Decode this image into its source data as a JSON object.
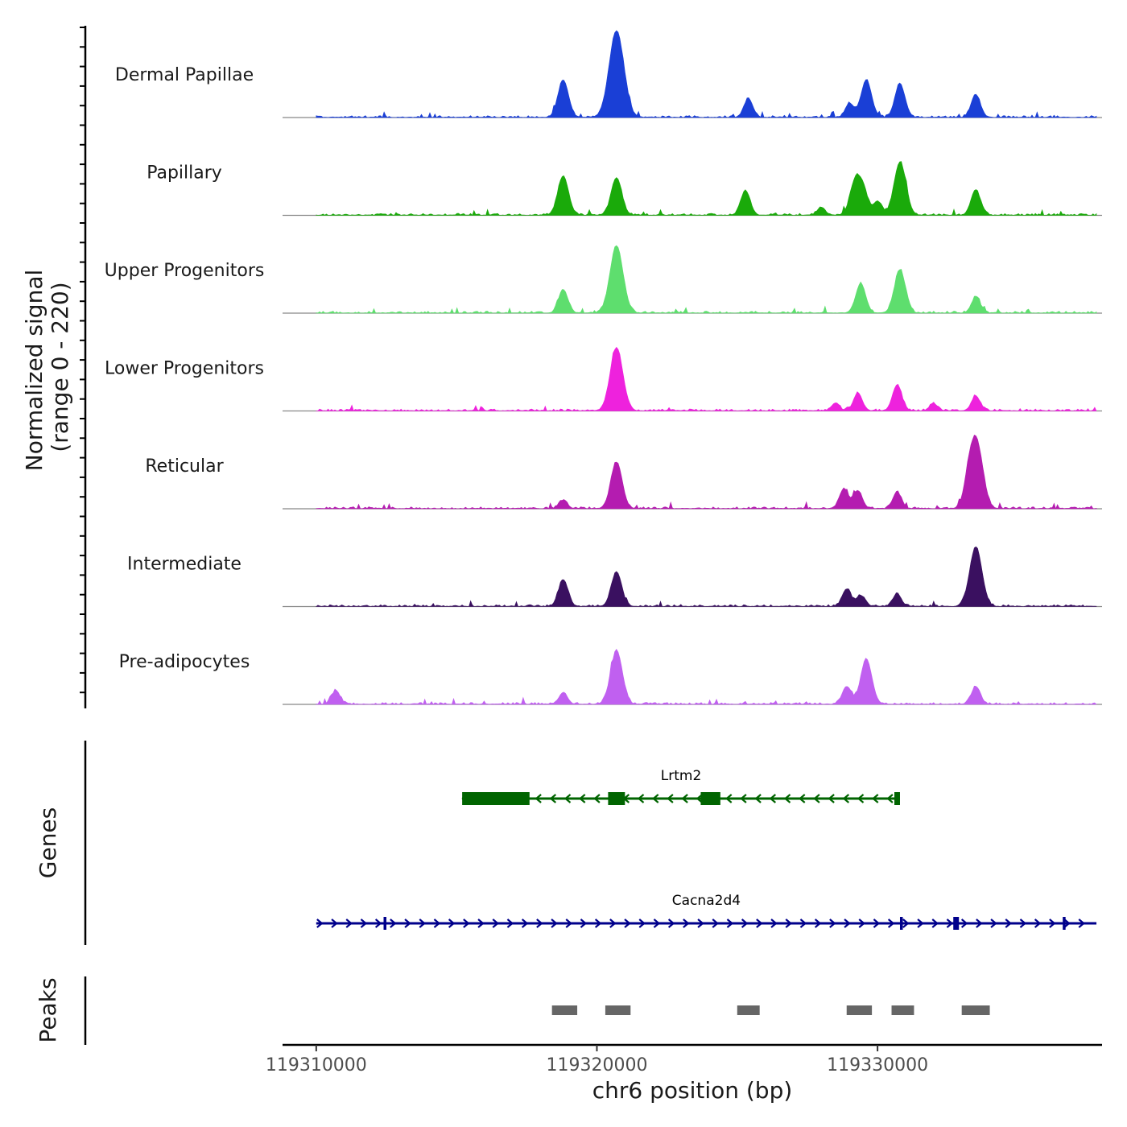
{
  "chart_data": {
    "type": "area",
    "title": "",
    "xlabel": "chr6 position (bp)",
    "ylabel": "Normalized signal",
    "ylabel_range": "(range 0 - 220)",
    "y_range": [
      0,
      220
    ],
    "xlim": [
      119308800,
      119338000
    ],
    "x_ticks": [
      119310000,
      119320000,
      119330000
    ],
    "x_tick_labels": [
      "119310000",
      "119320000",
      "119330000"
    ],
    "region": {
      "start": 119310000,
      "end": 119337800
    },
    "series": [
      {
        "name": "Dermal Papillae",
        "color": "#1a3fd6",
        "peaks": [
          [
            119318800,
            95
          ],
          [
            119320700,
            220
          ],
          [
            119325400,
            48
          ],
          [
            119329000,
            35
          ],
          [
            119329600,
            95
          ],
          [
            119330800,
            85
          ],
          [
            119333500,
            58
          ]
        ]
      },
      {
        "name": "Papillary",
        "color": "#1aaa0a",
        "peaks": [
          [
            119318800,
            100
          ],
          [
            119320700,
            95
          ],
          [
            119325300,
            62
          ],
          [
            119328000,
            20
          ],
          [
            119329200,
            85
          ],
          [
            119329500,
            60
          ],
          [
            119330000,
            35
          ],
          [
            119330800,
            135
          ],
          [
            119333500,
            65
          ]
        ]
      },
      {
        "name": "Upper Progenitors",
        "color": "#5ede6e",
        "peaks": [
          [
            119318800,
            60
          ],
          [
            119320700,
            170
          ],
          [
            119329400,
            75
          ],
          [
            119330800,
            110
          ],
          [
            119333500,
            40
          ]
        ]
      },
      {
        "name": "Lower Progenitors",
        "color": "#ee22dd",
        "peaks": [
          [
            119320700,
            160
          ],
          [
            119328500,
            20
          ],
          [
            119329300,
            45
          ],
          [
            119330700,
            65
          ],
          [
            119332000,
            18
          ],
          [
            119333500,
            38
          ]
        ]
      },
      {
        "name": "Reticular",
        "color": "#b41cb0",
        "peaks": [
          [
            119318800,
            22
          ],
          [
            119320700,
            118
          ],
          [
            119328800,
            50
          ],
          [
            119329300,
            45
          ],
          [
            119330700,
            42
          ],
          [
            119333200,
            30
          ],
          [
            119333500,
            180
          ]
        ]
      },
      {
        "name": "Intermediate",
        "color": "#3a1060",
        "peaks": [
          [
            119318800,
            68
          ],
          [
            119320700,
            88
          ],
          [
            119328900,
            45
          ],
          [
            119329400,
            28
          ],
          [
            119330700,
            32
          ],
          [
            119333500,
            150
          ]
        ]
      },
      {
        "name": "Pre-adipocytes",
        "color": "#c060f0",
        "peaks": [
          [
            119310700,
            35
          ],
          [
            119318800,
            30
          ],
          [
            119320700,
            135
          ],
          [
            119328900,
            45
          ],
          [
            119329600,
            115
          ],
          [
            119333500,
            45
          ]
        ]
      }
    ],
    "genes": [
      {
        "name": "Lrtm2",
        "strand": "-",
        "color": "#006400",
        "start": 119315200,
        "end": 119330800,
        "exons": [
          [
            119315200,
            119317600
          ],
          [
            119320400,
            119321000
          ],
          [
            119323700,
            119324400
          ],
          [
            119330600,
            119330800
          ]
        ]
      },
      {
        "name": "Cacna2d4",
        "strand": "+",
        "color": "#00008b",
        "start": 119310000,
        "end": 119337800,
        "exons": [
          [
            119312400,
            119312500
          ],
          [
            119330800,
            119330900
          ],
          [
            119332700,
            119332900
          ],
          [
            119336600,
            119336700
          ]
        ]
      }
    ],
    "peaks_track": [
      [
        119318400,
        119319300
      ],
      [
        119320300,
        119321200
      ],
      [
        119325000,
        119325800
      ],
      [
        119328900,
        119329800
      ],
      [
        119330500,
        119331300
      ],
      [
        119333000,
        119334000
      ]
    ],
    "panel_labels": [
      "Genes",
      "Peaks"
    ]
  }
}
